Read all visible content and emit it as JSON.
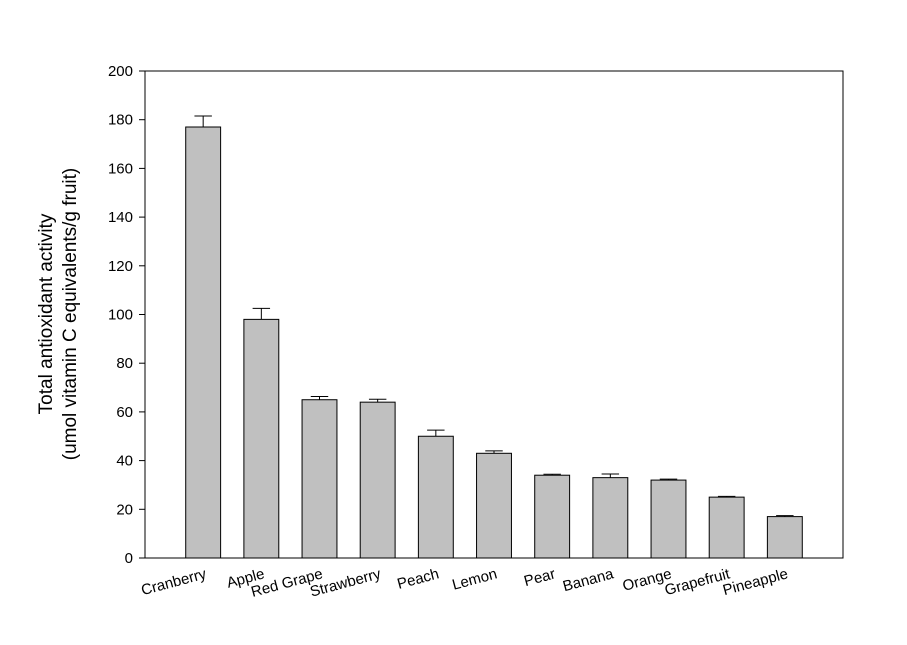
{
  "chart_data": {
    "type": "bar",
    "ylabel": [
      "Total antioxidant activity",
      "(umol vitamin C equivalents/g fruit)"
    ],
    "categories": [
      "Cranberry",
      "Apple",
      "Red Grape",
      "Strawberry",
      "Peach",
      "Lemon",
      "Pear",
      "Banana",
      "Orange",
      "Grapefruit",
      "Pineapple"
    ],
    "values": [
      177,
      98,
      65,
      64,
      50,
      43,
      34,
      33,
      32,
      25,
      17
    ],
    "errors": [
      4.5,
      4.5,
      1.3,
      1.2,
      2.5,
      1,
      0.4,
      1.5,
      0.4,
      0.3,
      0.4
    ],
    "color": "#c0c0c0",
    "ylim": [
      0,
      200
    ],
    "yticks": [
      0,
      20,
      40,
      60,
      80,
      100,
      120,
      140,
      160,
      180,
      200
    ],
    "grid": false
  }
}
